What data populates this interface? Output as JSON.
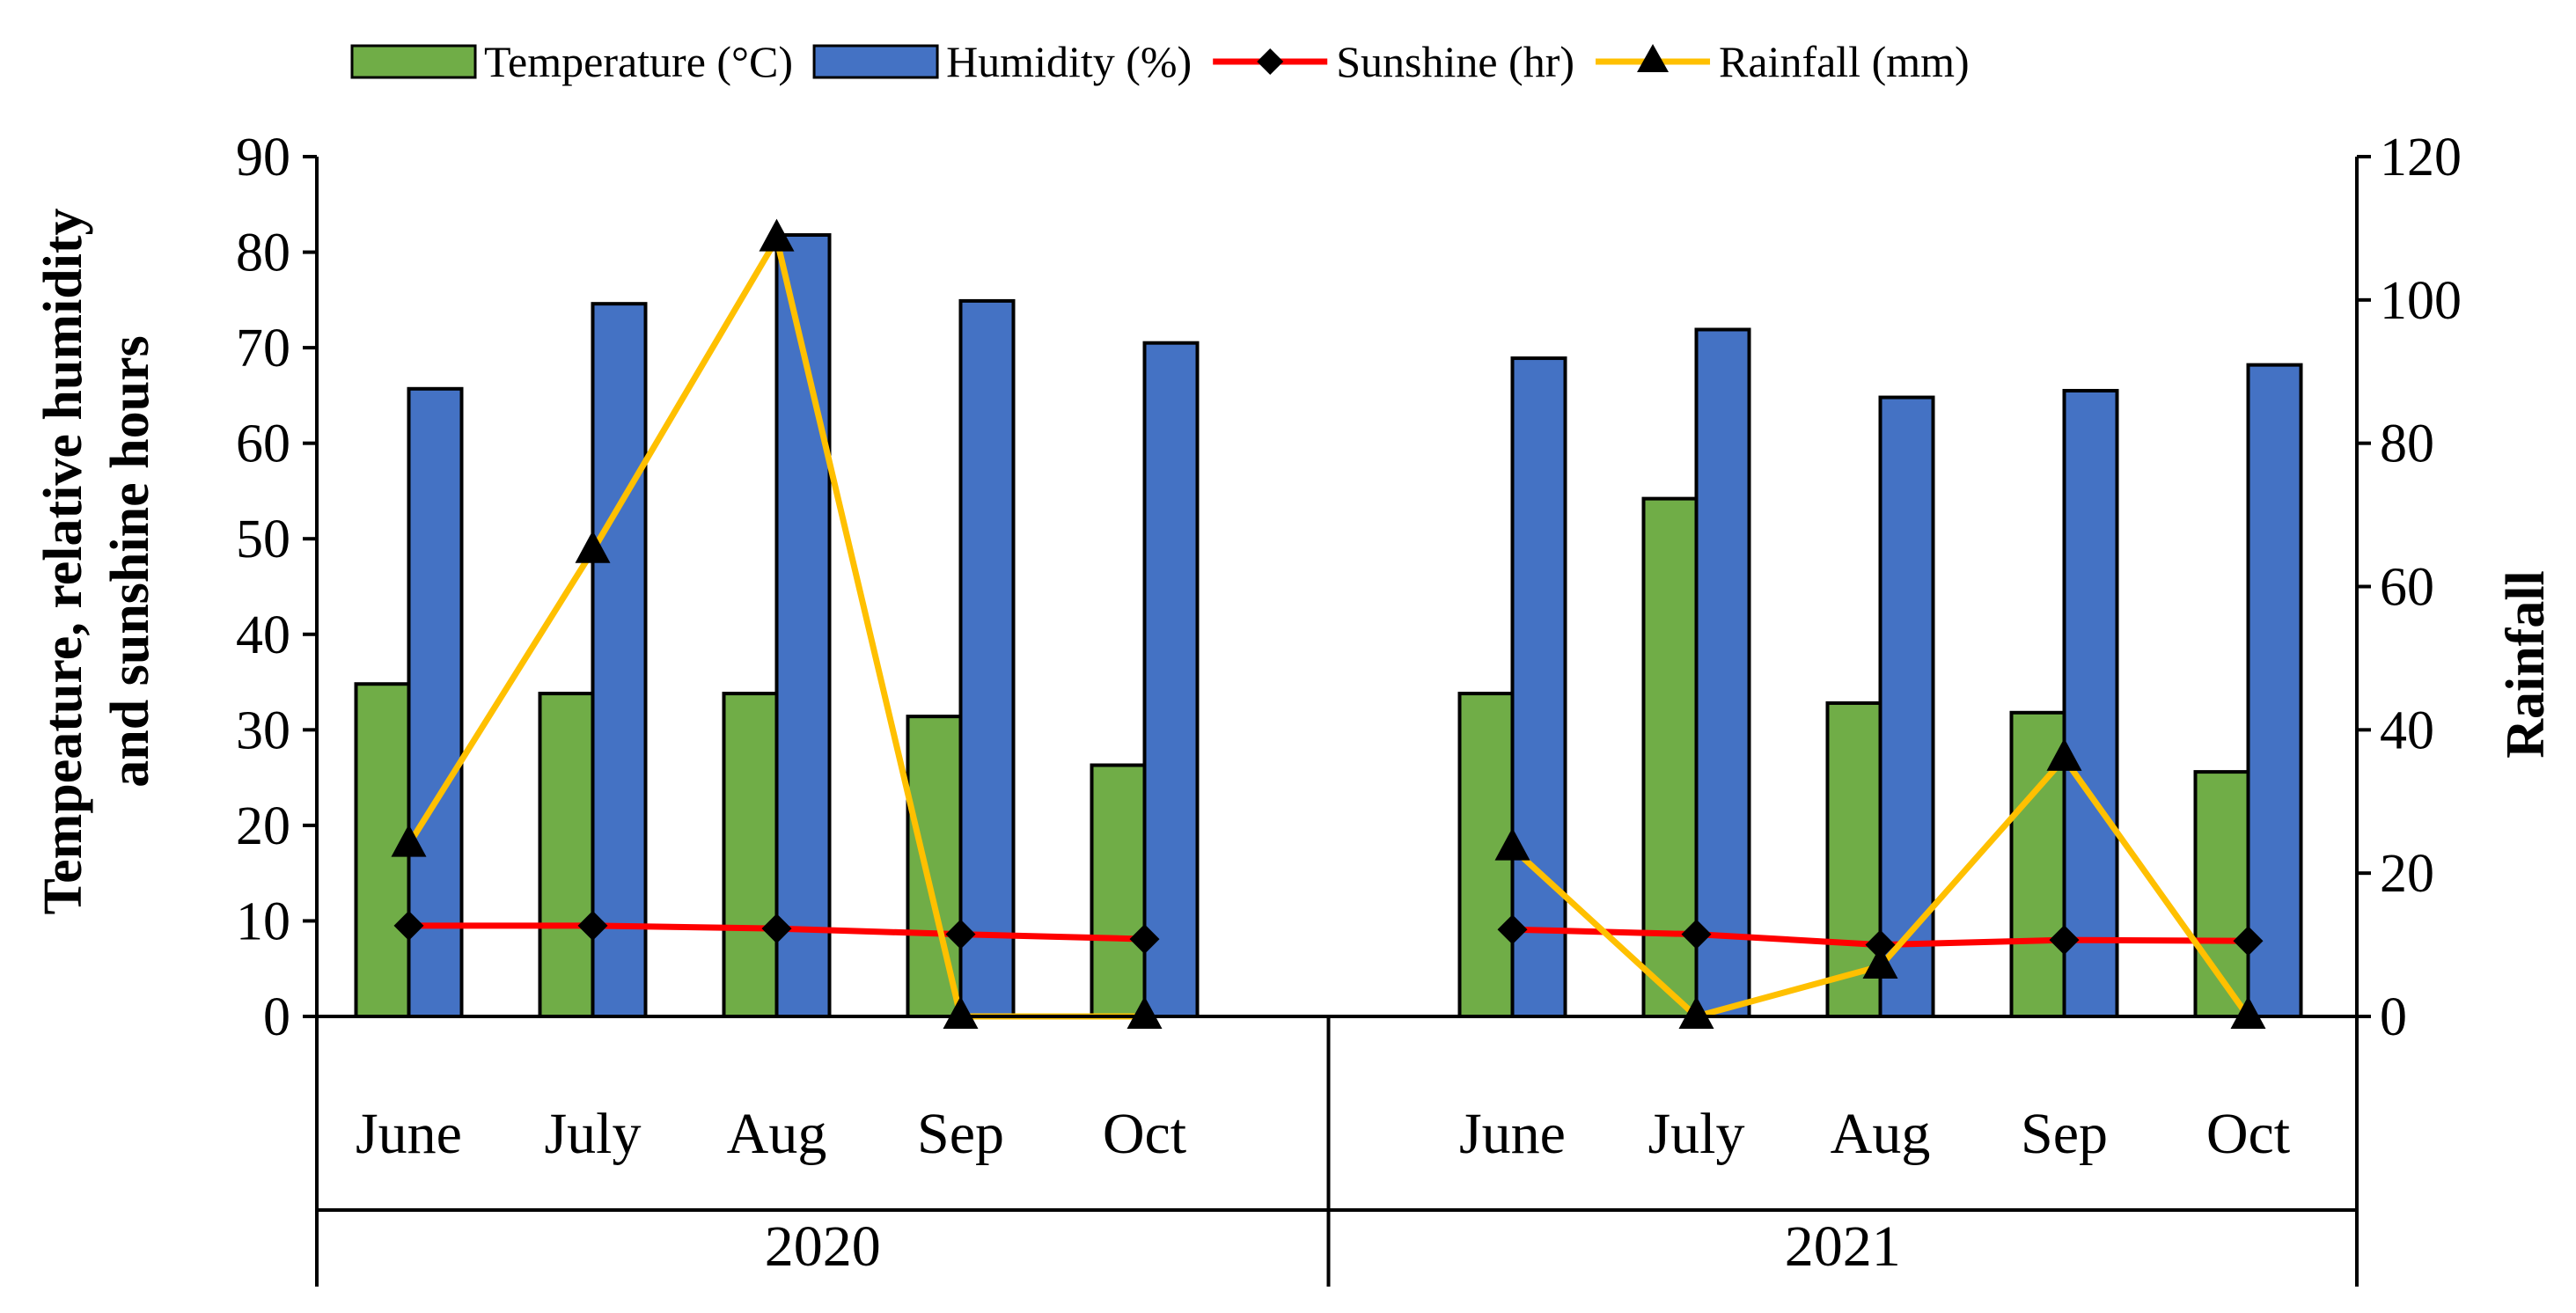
{
  "chart_data": {
    "type": "bar",
    "groups": [
      {
        "label": "2020",
        "categories": [
          "June",
          "July",
          "Aug",
          "Sep",
          "Oct"
        ]
      },
      {
        "label": "2021",
        "categories": [
          "June",
          "July",
          "Aug",
          "Sep",
          "Oct"
        ]
      }
    ],
    "series": [
      {
        "name": "Temperature (°C)",
        "kind": "bar",
        "axis": "left",
        "color": "#70AD47",
        "values": [
          34.8,
          33.8,
          33.8,
          31.4,
          26.3,
          33.8,
          54.2,
          32.8,
          31.8,
          25.6
        ]
      },
      {
        "name": "Humidity (%)",
        "kind": "bar",
        "axis": "left",
        "color": "#4472C4",
        "values": [
          65.7,
          74.6,
          81.8,
          74.9,
          70.5,
          68.9,
          71.9,
          64.8,
          65.5,
          68.2
        ]
      },
      {
        "name": "Sunshine (hr)",
        "kind": "line",
        "marker": "diamond",
        "axis": "left",
        "color": "#FF0000",
        "values": [
          9.5,
          9.5,
          9.2,
          8.6,
          8.1,
          9.1,
          8.6,
          7.5,
          8.0,
          7.9
        ]
      },
      {
        "name": "Rainfall (mm)",
        "kind": "line",
        "marker": "triangle",
        "axis": "right",
        "color": "#FFC000",
        "values": [
          24.0,
          65.0,
          108.5,
          0,
          0,
          23.5,
          0,
          7.0,
          36.0,
          0
        ]
      }
    ],
    "y_left": {
      "label": "Tempeature, relative humidity and sunshine hours",
      "label_lines": [
        "Tempeature, relative humidity",
        "and sunshine hours"
      ],
      "min": 0,
      "max": 90,
      "step": 10,
      "ticks": [
        "0",
        "10",
        "20",
        "30",
        "40",
        "50",
        "60",
        "70",
        "80",
        "90"
      ]
    },
    "y_right": {
      "label": "Rainfall",
      "min": 0,
      "max": 120,
      "step": 20,
      "ticks": [
        "0",
        "20",
        "40",
        "60",
        "80",
        "100",
        "120"
      ]
    },
    "legend": {
      "position": "top"
    }
  }
}
